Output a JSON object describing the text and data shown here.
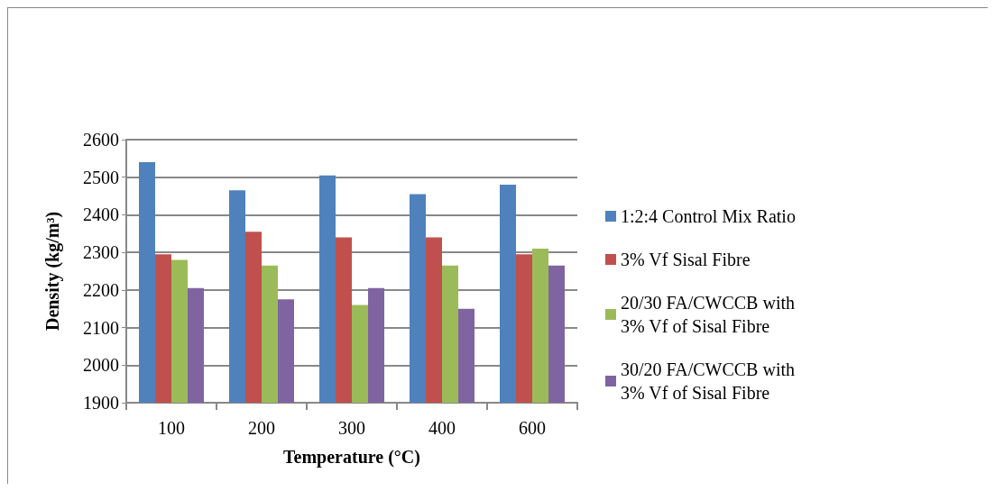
{
  "chart_data": {
    "type": "bar",
    "xlabel": "Temperature (°C)",
    "ylabel": "Density (kg/m³)",
    "categories": [
      "100",
      "200",
      "300",
      "400",
      "600"
    ],
    "series": [
      {
        "name": "1:2:4 Control Mix Ratio",
        "color": "#4f81bd",
        "values": [
          2540,
          2465,
          2505,
          2455,
          2480
        ]
      },
      {
        "name": "3% Vf Sisal Fibre",
        "color": "#c0504d",
        "values": [
          2295,
          2355,
          2340,
          2340,
          2295
        ]
      },
      {
        "name": "20/30 FA/CWCCB with 3% Vf of Sisal Fibre",
        "color": "#9bbb59",
        "values": [
          2280,
          2265,
          2160,
          2265,
          2310
        ]
      },
      {
        "name": "30/20 FA/CWCCB with 3% Vf of Sisal Fibre",
        "color": "#8064a2",
        "values": [
          2205,
          2175,
          2205,
          2150,
          2265
        ]
      }
    ],
    "ylim": [
      1900,
      2600
    ],
    "yticks": [
      1900,
      2000,
      2100,
      2200,
      2300,
      2400,
      2500,
      2600
    ],
    "grid": "y",
    "legend": "right"
  }
}
